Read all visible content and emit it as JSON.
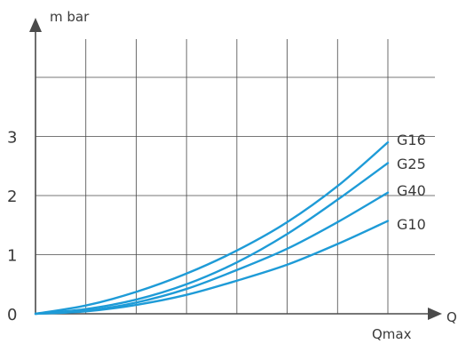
{
  "chart_data": {
    "type": "line",
    "ylabel": "m bar",
    "xlabel": "Q",
    "x_tick_labels": [
      "Qmax"
    ],
    "y_ticks": [
      0,
      1,
      2,
      3
    ],
    "ylim": [
      0,
      4
    ],
    "xlim": [
      0,
      7
    ],
    "x_gridlines": [
      1,
      2,
      3,
      4,
      5,
      6,
      7
    ],
    "y_gridlines": [
      1,
      2,
      3,
      4
    ],
    "grid": true,
    "series_color": "#1e9bd7",
    "series": [
      {
        "name": "G16",
        "x": [
          0,
          1,
          2,
          3,
          4,
          5,
          6,
          7
        ],
        "values": [
          0.0,
          0.14,
          0.37,
          0.68,
          1.07,
          1.55,
          2.16,
          2.9
        ]
      },
      {
        "name": "G25",
        "x": [
          0,
          1,
          2,
          3,
          4,
          5,
          6,
          7
        ],
        "values": [
          0.0,
          0.08,
          0.24,
          0.5,
          0.87,
          1.35,
          1.93,
          2.55
        ]
      },
      {
        "name": "G40",
        "x": [
          0,
          1,
          2,
          3,
          4,
          5,
          6,
          7
        ],
        "values": [
          0.0,
          0.05,
          0.19,
          0.42,
          0.74,
          1.1,
          1.55,
          2.05
        ]
      },
      {
        "name": "G10",
        "x": [
          0,
          1,
          2,
          3,
          4,
          5,
          6,
          7
        ],
        "values": [
          0.0,
          0.04,
          0.15,
          0.32,
          0.56,
          0.83,
          1.18,
          1.57
        ]
      }
    ]
  }
}
